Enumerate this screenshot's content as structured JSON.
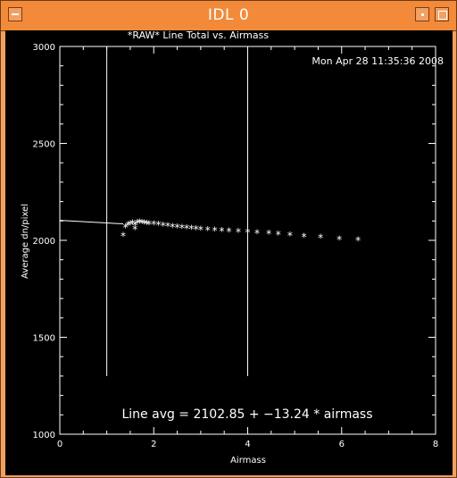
{
  "window": {
    "title": "IDL 0"
  },
  "plot": {
    "title": "*RAW* Line Total vs. Airmass",
    "timestamp": "Mon Apr 28 11:35:36 2008",
    "annotation": "Line avg = 2102.85 + −13.24 * airmass"
  },
  "icons": {
    "menu": "menu-icon",
    "minimize": "minimize-icon",
    "maximize": "maximize-icon"
  },
  "colors": {
    "title_bar": "#f28a3a",
    "frame": "#f0a060",
    "plot_bg": "#000000",
    "plot_fg": "#ffffff"
  },
  "chart_data": {
    "type": "scatter",
    "title": "*RAW* Line Total vs. Airmass",
    "xlabel": "Airmass",
    "ylabel": "Average dn/pixel",
    "xlim": [
      0,
      8
    ],
    "ylim": [
      1000,
      3000
    ],
    "x_ticks": [
      "0",
      "2",
      "4",
      "6",
      "8"
    ],
    "y_ticks": [
      "1000",
      "1500",
      "2000",
      "2500",
      "3000"
    ],
    "vertical_lines_x": [
      1.0,
      4.0
    ],
    "vertical_lines_ylim": [
      1300,
      3000
    ],
    "fit_line": {
      "intercept": 2102.85,
      "slope": -13.24,
      "x_from": 0,
      "x_to": 1.35
    },
    "points": [
      {
        "x": 1.35,
        "y": 2025
      },
      {
        "x": 1.4,
        "y": 2070
      },
      {
        "x": 1.45,
        "y": 2080
      },
      {
        "x": 1.5,
        "y": 2085
      },
      {
        "x": 1.55,
        "y": 2090
      },
      {
        "x": 1.6,
        "y": 2080
      },
      {
        "x": 1.6,
        "y": 2060
      },
      {
        "x": 1.65,
        "y": 2092
      },
      {
        "x": 1.7,
        "y": 2095
      },
      {
        "x": 1.75,
        "y": 2092
      },
      {
        "x": 1.8,
        "y": 2090
      },
      {
        "x": 1.85,
        "y": 2088
      },
      {
        "x": 1.9,
        "y": 2086
      },
      {
        "x": 2.0,
        "y": 2085
      },
      {
        "x": 2.1,
        "y": 2082
      },
      {
        "x": 2.2,
        "y": 2078
      },
      {
        "x": 2.3,
        "y": 2075
      },
      {
        "x": 2.4,
        "y": 2072
      },
      {
        "x": 2.5,
        "y": 2070
      },
      {
        "x": 2.6,
        "y": 2067
      },
      {
        "x": 2.7,
        "y": 2065
      },
      {
        "x": 2.8,
        "y": 2062
      },
      {
        "x": 2.9,
        "y": 2060
      },
      {
        "x": 3.0,
        "y": 2058
      },
      {
        "x": 3.15,
        "y": 2055
      },
      {
        "x": 3.3,
        "y": 2052
      },
      {
        "x": 3.45,
        "y": 2050
      },
      {
        "x": 3.6,
        "y": 2048
      },
      {
        "x": 3.8,
        "y": 2046
      },
      {
        "x": 4.0,
        "y": 2043
      },
      {
        "x": 4.2,
        "y": 2040
      },
      {
        "x": 4.45,
        "y": 2036
      },
      {
        "x": 4.65,
        "y": 2033
      },
      {
        "x": 4.9,
        "y": 2028
      },
      {
        "x": 5.2,
        "y": 2020
      },
      {
        "x": 5.55,
        "y": 2015
      },
      {
        "x": 5.95,
        "y": 2007
      },
      {
        "x": 6.35,
        "y": 2003
      }
    ]
  }
}
